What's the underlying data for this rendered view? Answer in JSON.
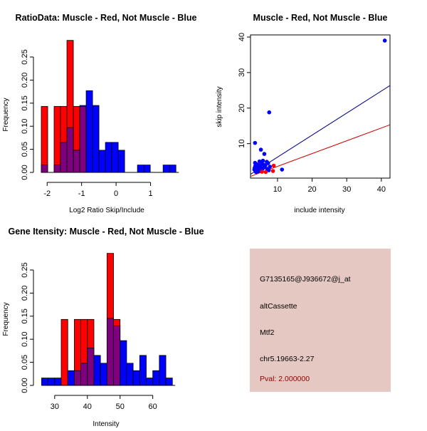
{
  "chart_data": [
    {
      "id": "ratio",
      "type": "bar",
      "title": "RatioData: Muscle - Red, Not Muscle - Blue",
      "xlabel": "Log2 Ratio Skip/Include",
      "ylabel": "Frequency",
      "xlim": [
        -2.17,
        1.67
      ],
      "ylim": [
        0,
        0.25
      ],
      "xticks": [
        -2,
        -1,
        0,
        1
      ],
      "xtick_labels": [
        "-2",
        "-1",
        "0",
        "1"
      ],
      "yticks": [
        0,
        0.05,
        0.1,
        0.15,
        0.2,
        0.25
      ],
      "ytick_labels": [
        "0.00",
        "0.05",
        "0.10",
        "0.15",
        "0.20",
        "0.25"
      ],
      "bin_start": -2.17,
      "bin_width": 0.186,
      "series": [
        {
          "name": "Muscle",
          "color": "#ff0000",
          "values": [
            0.143,
            0,
            0.143,
            0.143,
            0.286,
            0.143,
            0.143,
            0,
            0,
            0,
            0,
            0,
            0,
            0,
            0,
            0,
            0,
            0,
            0,
            0,
            0
          ]
        },
        {
          "name": "Not Muscle",
          "color": "#0000ff",
          "values": [
            0.016,
            0,
            0.016,
            0.065,
            0.097,
            0.048,
            0.145,
            0.177,
            0.145,
            0.048,
            0.065,
            0.065,
            0.048,
            0,
            0,
            0.016,
            0.016,
            0,
            0,
            0.016,
            0.016
          ]
        }
      ],
      "overlap_color": "#7f007f"
    },
    {
      "id": "scatter",
      "type": "scatter",
      "title": "Muscle - Red, Not Muscle - Blue",
      "xlabel": "include intensity",
      "ylabel": "skip intensity",
      "xlim": [
        2.2,
        42.5
      ],
      "ylim": [
        0.3,
        40.6
      ],
      "xticks": [
        10,
        20,
        30,
        40
      ],
      "xtick_labels": [
        "10",
        "20",
        "30",
        "40"
      ],
      "yticks": [
        10,
        20,
        30,
        40
      ],
      "ytick_labels": [
        "10",
        "20",
        "30",
        "40"
      ],
      "series": [
        {
          "name": "Not Muscle",
          "color": "#0000ff",
          "points": [
            [
              41,
              39
            ],
            [
              7.6,
              18.8
            ],
            [
              3.5,
              10.2
            ],
            [
              5.2,
              8.3
            ],
            [
              6.2,
              7.1
            ],
            [
              5.8,
              5.2
            ],
            [
              4.8,
              5.0
            ],
            [
              6.9,
              4.9
            ],
            [
              7.3,
              4.5
            ],
            [
              3.5,
              4.6
            ],
            [
              4.0,
              4.2
            ],
            [
              4.5,
              4.0
            ],
            [
              5.5,
              4.4
            ],
            [
              6.0,
              4.1
            ],
            [
              3.6,
              3.8
            ],
            [
              4.2,
              3.6
            ],
            [
              5.0,
              3.7
            ],
            [
              6.5,
              3.9
            ],
            [
              7.8,
              3.5
            ],
            [
              3.4,
              3.2
            ],
            [
              3.9,
              3.0
            ],
            [
              4.6,
              3.3
            ],
            [
              5.3,
              3.1
            ],
            [
              6.2,
              3.4
            ],
            [
              3.3,
              2.7
            ],
            [
              4.1,
              2.6
            ],
            [
              4.8,
              2.8
            ],
            [
              5.7,
              2.9
            ],
            [
              7.0,
              2.9
            ],
            [
              3.6,
              2.3
            ],
            [
              4.4,
              2.2
            ],
            [
              5.1,
              2.4
            ],
            [
              11.3,
              2.7
            ],
            [
              7.5,
              2.5
            ],
            [
              3.8,
              2.0
            ]
          ],
          "fit_line": {
            "intercept": 0.0,
            "slope": 0.62
          }
        },
        {
          "name": "Muscle",
          "color": "#ff0000",
          "points": [
            [
              8.9,
              3.8
            ],
            [
              8.7,
              2.3
            ],
            [
              6.6,
              2.0
            ],
            [
              5.5,
              2.1
            ]
          ],
          "fit_line": {
            "intercept": 0.0,
            "slope": 0.36
          }
        }
      ]
    },
    {
      "id": "intensity",
      "type": "bar",
      "title": "Gene Itensity: Muscle - Red, Not Muscle - Blue",
      "xlabel": "Intensity",
      "ylabel": "Frequency",
      "xlim": [
        25.9,
        66.6
      ],
      "ylim": [
        0,
        0.25
      ],
      "xticks": [
        30,
        40,
        50,
        60
      ],
      "xtick_labels": [
        "30",
        "40",
        "50",
        "60"
      ],
      "yticks": [
        0,
        0.05,
        0.1,
        0.15,
        0.2,
        0.25
      ],
      "ytick_labels": [
        "0.00",
        "0.05",
        "0.10",
        "0.15",
        "0.20",
        "0.25"
      ],
      "bin_start": 26,
      "bin_width": 2,
      "series": [
        {
          "name": "Muscle",
          "color": "#ff0000",
          "values": [
            0,
            0,
            0,
            0.143,
            0,
            0.143,
            0.143,
            0.143,
            0,
            0,
            0.286,
            0.143,
            0,
            0,
            0,
            0,
            0,
            0,
            0,
            0
          ]
        },
        {
          "name": "Not Muscle",
          "color": "#0000ff",
          "values": [
            0.016,
            0.016,
            0.016,
            0,
            0.032,
            0.032,
            0.048,
            0.081,
            0.065,
            0.048,
            0.145,
            0.129,
            0.097,
            0.048,
            0.032,
            0.065,
            0.016,
            0.032,
            0.065,
            0.016
          ]
        }
      ],
      "overlap_color": "#7f007f"
    }
  ],
  "info_panel": {
    "probe_id": "G7135165@J936672@j_at",
    "event_type": "altCassette",
    "gene": "Mtf2",
    "location": "chr5.19663-2.27",
    "pval": "Pval: 2.000000"
  }
}
